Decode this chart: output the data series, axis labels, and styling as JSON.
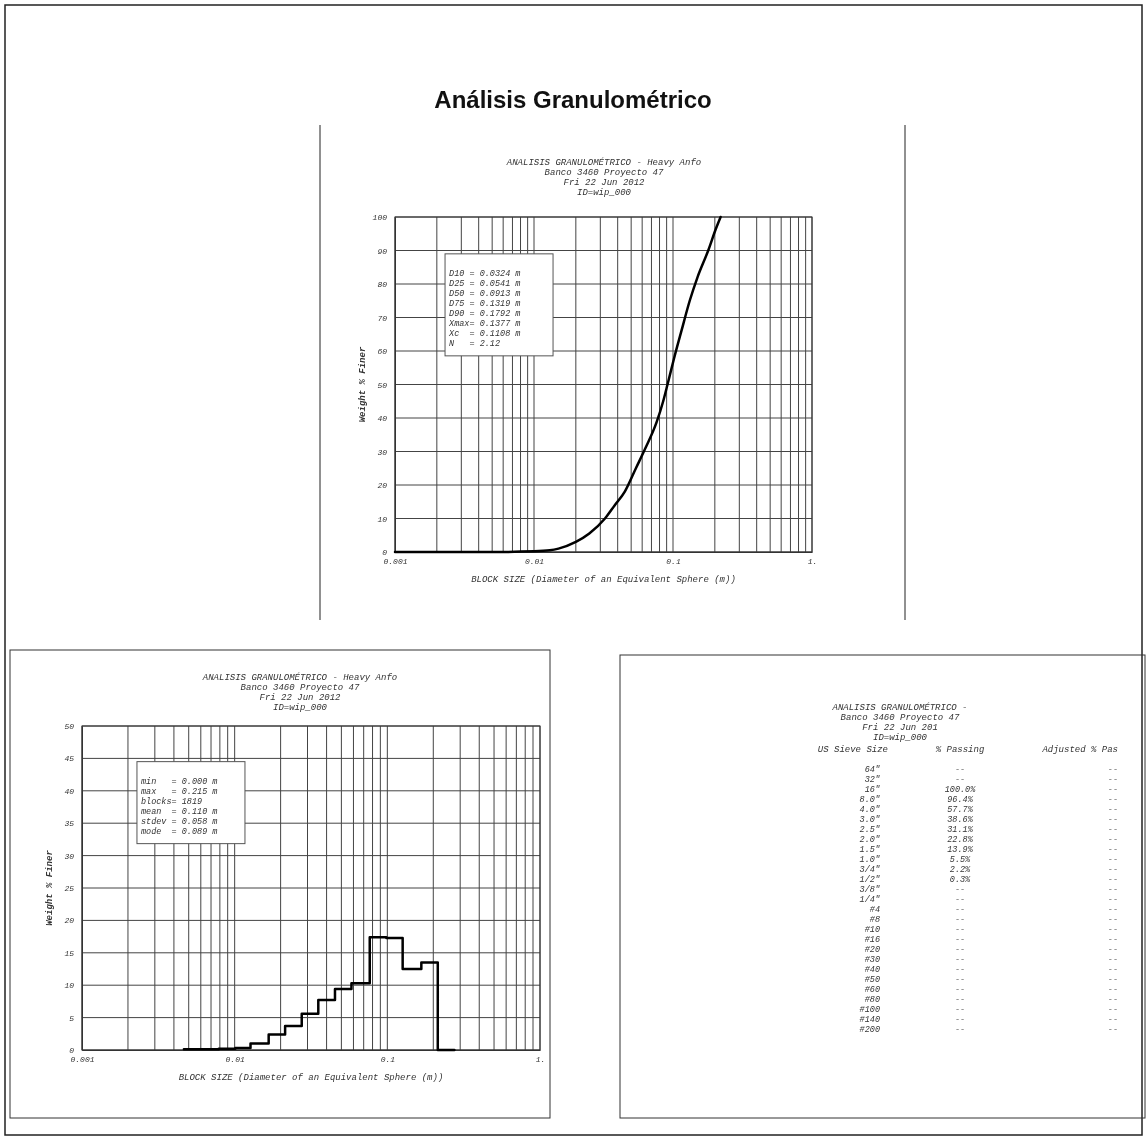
{
  "chart_data": [
    {
      "type": "line",
      "title": "Análisis Granulométrico",
      "subtitle": "ANALISIS GRANULOMÉTRICO - Heavy Anfo\nBanco 3460 Proyecto 47\nFri 22 Jun 2012\nID=wip_000",
      "xlabel": "BLOCK SIZE (Diameter of an Equivalent Sphere (m))",
      "ylabel": "Weight % Finer",
      "log": "x",
      "grid": true,
      "xlim": [
        0.001,
        1
      ],
      "ylim": [
        0,
        100
      ],
      "xticks": [
        0.001,
        {
          "value": 0.002,
          "label": null
        },
        {
          "value": 0.003,
          "label": null
        },
        {
          "value": 0.004,
          "label": null
        },
        {
          "value": 0.005,
          "label": null
        },
        {
          "value": 0.006,
          "label": null
        },
        {
          "value": 0.007,
          "label": null
        },
        {
          "value": 0.008,
          "label": null
        },
        {
          "value": 0.009,
          "label": null
        },
        0.01,
        {
          "value": 0.02,
          "label": null
        },
        {
          "value": 0.03,
          "label": null
        },
        {
          "value": 0.04,
          "label": null
        },
        {
          "value": 0.05,
          "label": null
        },
        {
          "value": 0.06,
          "label": null
        },
        {
          "value": 0.07,
          "label": null
        },
        {
          "value": 0.08,
          "label": null
        },
        {
          "value": 0.09,
          "label": null
        },
        0.1,
        {
          "value": 0.2,
          "label": null
        },
        {
          "value": 0.3,
          "label": null
        },
        {
          "value": 0.4,
          "label": null
        },
        {
          "value": 0.5,
          "label": null
        },
        {
          "value": 0.6,
          "label": null
        },
        {
          "value": 0.7,
          "label": null
        },
        {
          "value": 0.8,
          "label": null
        },
        {
          "value": 0.9,
          "label": null
        },
        {
          "value": 1,
          "label": "1."
        }
      ],
      "yticks": [
        0,
        10,
        20,
        30,
        40,
        50,
        60,
        70,
        80,
        90,
        100
      ],
      "series": [
        {
          "color": "#000000",
          "x": [
            0.001,
            0.005,
            0.01,
            0.013,
            0.015,
            0.02,
            0.025,
            0.0324,
            0.038,
            0.045,
            0.0541,
            0.0635,
            0.076,
            0.085,
            0.0913,
            0.1016,
            0.115,
            0.1319,
            0.15,
            0.1792,
            0.2032,
            0.22
          ],
          "values": [
            0,
            0,
            0.2,
            0.5,
            1,
            3,
            5.5,
            10,
            13.9,
            18,
            25,
            31.1,
            38.6,
            45,
            50,
            57.7,
            66,
            75,
            82,
            90,
            96.4,
            100
          ]
        }
      ],
      "annotations": [
        "D10 = 0.0324 m",
        "D25 = 0.0541 m",
        "D50 = 0.0913 m",
        "D75 = 0.1319 m",
        "D90 = 0.1792 m",
        "Xmax= 0.1377 m",
        "Xc  = 0.1108 m",
        "N   = 2.12"
      ]
    },
    {
      "type": "step",
      "title": "ANALISIS GRANULOMÉTRICO - Heavy Anfo",
      "subtitle": "Banco 3460 Proyecto 47\nFri 22 Jun 2012\nID=wip_000",
      "xlabel": "BLOCK SIZE (Diameter of an Equivalent Sphere (m))",
      "ylabel": "Weight % Finer",
      "log": "x",
      "grid": true,
      "xlim": [
        0.001,
        1
      ],
      "ylim": [
        0,
        50
      ],
      "xticks": [
        0.001,
        {
          "value": 0.002,
          "label": null
        },
        {
          "value": 0.003,
          "label": null
        },
        {
          "value": 0.004,
          "label": null
        },
        {
          "value": 0.005,
          "label": null
        },
        {
          "value": 0.006,
          "label": null
        },
        {
          "value": 0.007,
          "label": null
        },
        {
          "value": 0.008,
          "label": null
        },
        {
          "value": 0.009,
          "label": null
        },
        0.01,
        {
          "value": 0.02,
          "label": null
        },
        {
          "value": 0.03,
          "label": null
        },
        {
          "value": 0.04,
          "label": null
        },
        {
          "value": 0.05,
          "label": null
        },
        {
          "value": 0.06,
          "label": null
        },
        {
          "value": 0.07,
          "label": null
        },
        {
          "value": 0.08,
          "label": null
        },
        {
          "value": 0.09,
          "label": null
        },
        0.1,
        {
          "value": 0.2,
          "label": null
        },
        {
          "value": 0.3,
          "label": null
        },
        {
          "value": 0.4,
          "label": null
        },
        {
          "value": 0.5,
          "label": null
        },
        {
          "value": 0.6,
          "label": null
        },
        {
          "value": 0.7,
          "label": null
        },
        {
          "value": 0.8,
          "label": null
        },
        {
          "value": 0.9,
          "label": null
        },
        {
          "value": 1,
          "label": "1."
        }
      ],
      "yticks": [
        0,
        5,
        10,
        15,
        20,
        25,
        30,
        35,
        40,
        45,
        50
      ],
      "series": [
        {
          "color": "#000000",
          "x": [
            0.00465,
            0.00597,
            0.00787,
            0.0101,
            0.0127,
            0.0167,
            0.0214,
            0.0275,
            0.0353,
            0.0454,
            0.0582,
            0.0767,
            0.0985,
            0.126,
            0.167,
            0.214,
            0.275
          ],
          "values": [
            0.1,
            0.1,
            0.2,
            0.3,
            1.0,
            2.4,
            3.7,
            5.6,
            7.7,
            9.4,
            10.3,
            17.4,
            17.3,
            12.5,
            13.5,
            0,
            0
          ]
        }
      ],
      "annotations": [
        "min   = 0.000 m",
        "max   = 0.215 m",
        "blocks= 1819",
        "mean  = 0.110 m",
        "stdev = 0.058 m",
        "mode  = 0.089 m"
      ]
    },
    {
      "type": "other",
      "title": "ANALISIS GRANULOMÉTRICO -",
      "subtitle": "Banco 3460 Proyecto 47\nFri 22 Jun 201\nID=wip_000",
      "xlabel": "US Sieve Size",
      "categories": [
        "64\"",
        "32\"",
        "16\"",
        "8.0\"",
        "4.0\"",
        "3.0\"",
        "2.5\"",
        "2.0\"",
        "1.5\"",
        "1.0\"",
        "3/4\"",
        "1/2\"",
        "3/8\"",
        "1/4\"",
        "#4",
        "#8",
        "#10",
        "#16",
        "#20",
        "#30",
        "#40",
        "#50",
        "#60",
        "#80",
        "#100",
        "#140",
        "#200"
      ],
      "series": [
        {
          "name": "% Passing",
          "values": [
            null,
            null,
            100.0,
            96.4,
            57.7,
            38.6,
            31.1,
            22.8,
            13.9,
            5.5,
            2.2,
            0.3,
            null,
            null,
            null,
            null,
            null,
            null,
            null,
            null,
            null,
            null,
            null,
            null,
            null,
            null,
            null
          ],
          "value_labels": [
            "--",
            "--",
            "100.0%",
            "96.4%",
            "57.7%",
            "38.6%",
            "31.1%",
            "22.8%",
            "13.9%",
            "5.5%",
            "2.2%",
            "0.3%",
            "--",
            "--",
            "--",
            "--",
            "--",
            "--",
            "--",
            "--",
            "--",
            "--",
            "--",
            "--",
            "--",
            "--",
            "--"
          ]
        },
        {
          "name": "Adjusted % Pas",
          "values": [
            null,
            null,
            null,
            null,
            null,
            null,
            null,
            null,
            null,
            null,
            null,
            null,
            null,
            null,
            null,
            null,
            null,
            null,
            null,
            null,
            null,
            null,
            null,
            null,
            null,
            null,
            null
          ],
          "value_labels": [
            "--",
            "--",
            "--",
            "--",
            "--",
            "--",
            "--",
            "--",
            "--",
            "--",
            "--",
            "--",
            "--",
            "--",
            "--",
            "--",
            "--",
            "--",
            "--",
            "--",
            "--",
            "--",
            "--",
            "--",
            "--",
            "--",
            "--"
          ]
        }
      ]
    }
  ]
}
